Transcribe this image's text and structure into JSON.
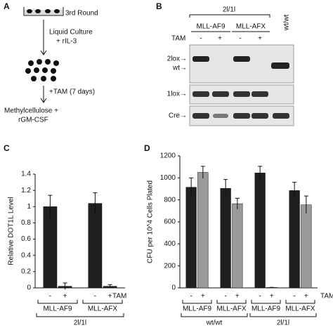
{
  "panel_a": {
    "label": "A",
    "step1": "3rd Round",
    "step2": [
      "Liquid Culture",
      "+ rIL-3"
    ],
    "step3": "+TAM (7 days)",
    "step4": [
      "Methylcellulose +",
      "rGM-CSF"
    ]
  },
  "panel_b": {
    "label": "B",
    "genotype": "2l/1l",
    "groups": [
      "MLL-AF9",
      "MLL-AFX"
    ],
    "control": "wt/wt",
    "treatment": "TAM",
    "lanes": [
      "-",
      "+",
      "-",
      "+"
    ],
    "bands": [
      "2lox→",
      "wt→",
      "1lox→",
      "Cre→"
    ]
  },
  "chart_data": [
    {
      "type": "bar",
      "panel": "C",
      "y_label": "Relative DOT1L Level",
      "treatment": "TAM",
      "categories": [
        "MLL-AF9",
        "MLL-AFX"
      ],
      "groups": [
        {
          "name": "2l/1l",
          "span": [
            0,
            1
          ]
        }
      ],
      "series": [
        {
          "name": "-",
          "color": "#1f1f1f",
          "values": [
            1.0,
            1.04
          ],
          "errors": [
            0.14,
            0.13
          ]
        },
        {
          "name": "+",
          "color": "#1f1f1f",
          "values": [
            0.02,
            0.02
          ],
          "errors": [
            0.04,
            0.02
          ]
        }
      ],
      "ylim": [
        0,
        1.4
      ],
      "yticks": [
        0,
        0.2,
        0.4,
        0.6,
        0.8,
        1,
        1.2,
        1.4
      ]
    },
    {
      "type": "bar",
      "panel": "D",
      "y_label": "CFU per 10^4 Cells Plated",
      "treatment": "TAM",
      "categories": [
        "MLL-AF9",
        "MLL-AFX",
        "MLL-AF9",
        "MLL-AFX"
      ],
      "groups": [
        {
          "name": "wt/wt",
          "span": [
            0,
            1
          ]
        },
        {
          "name": "2l/1l",
          "span": [
            2,
            3
          ]
        }
      ],
      "series": [
        {
          "name": "-",
          "color": "#1f1f1f",
          "values": [
            915,
            905,
            1045,
            885
          ],
          "errors": [
            85,
            80,
            60,
            75
          ]
        },
        {
          "name": "+",
          "color": "#9a9a9a",
          "values": [
            1050,
            765,
            5,
            755
          ],
          "errors": [
            55,
            50,
            0,
            80
          ]
        }
      ],
      "ylim": [
        0,
        1200
      ],
      "yticks": [
        0,
        200,
        400,
        600,
        800,
        1000,
        1200
      ]
    }
  ]
}
